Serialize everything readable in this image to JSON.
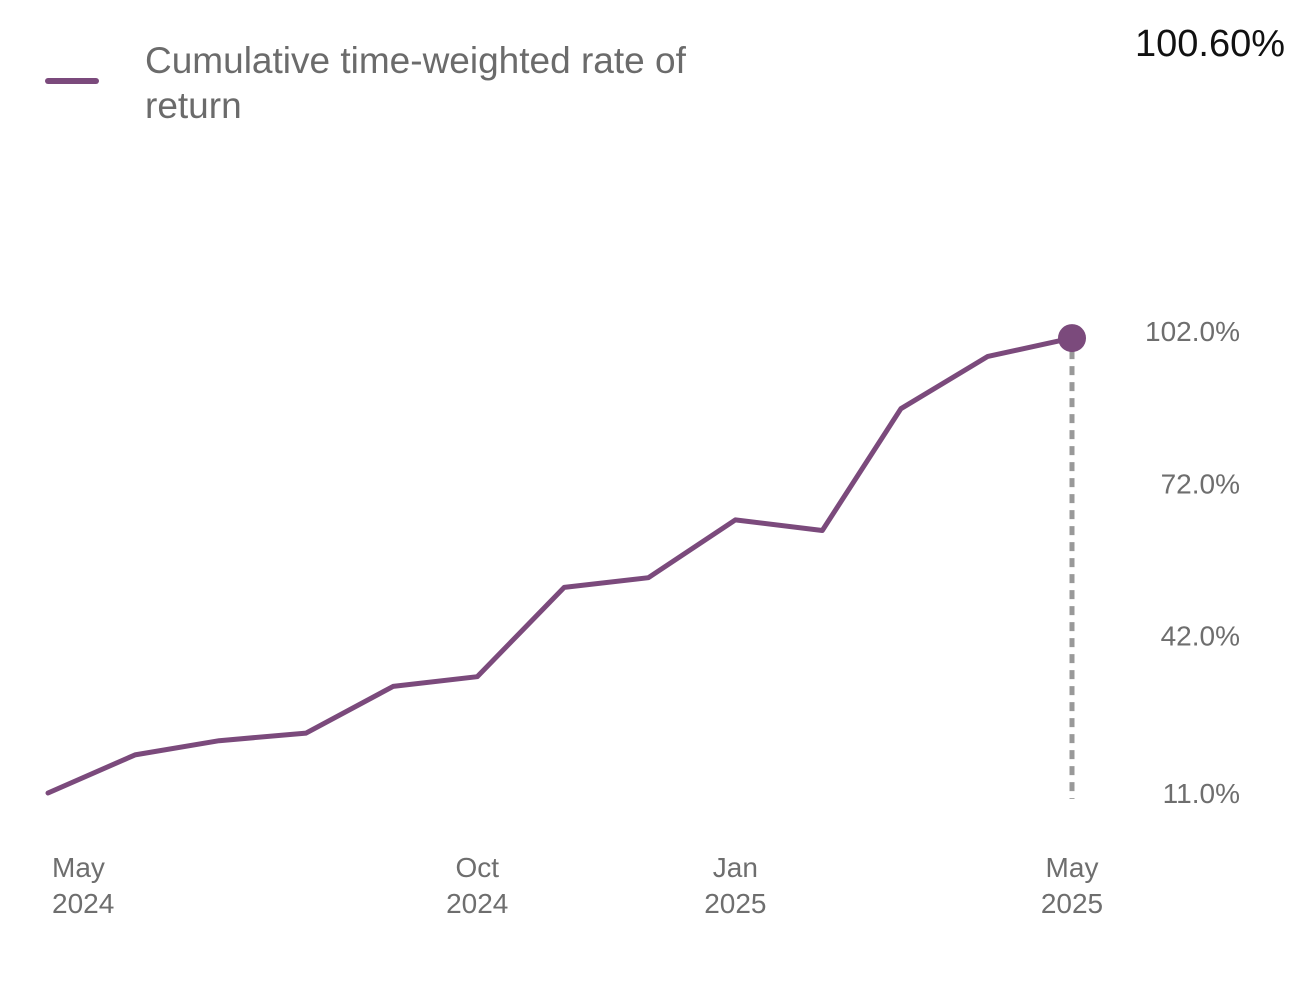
{
  "legend": {
    "label": "Cumulative time-weighted rate of return",
    "current_value": "100.60%"
  },
  "colors": {
    "series": "#7b4a7c",
    "guide": "#999999",
    "axis_text": "#6e6e6e"
  },
  "chart_data": {
    "type": "line",
    "title": "",
    "xlabel": "",
    "ylabel": "",
    "grid": false,
    "legend_position": "top-left",
    "x_ticks": [
      {
        "date": "2024-05-01",
        "line1": "May",
        "line2": "2024"
      },
      {
        "date": "2024-10-01",
        "line1": "Oct",
        "line2": "2024"
      },
      {
        "date": "2025-01-01",
        "line1": "Jan",
        "line2": "2025"
      },
      {
        "date": "2025-05-01",
        "line1": "May",
        "line2": "2025"
      }
    ],
    "y_ticks": [
      {
        "value": 11.0,
        "label": "11.0%"
      },
      {
        "value": 42.0,
        "label": "42.0%"
      },
      {
        "value": 72.0,
        "label": "72.0%"
      },
      {
        "value": 102.0,
        "label": "102.0%"
      }
    ],
    "xlim": [
      "2024-05-01",
      "2025-05-01"
    ],
    "ylim": [
      11.0,
      102.0
    ],
    "series": [
      {
        "name": "Cumulative time-weighted rate of return",
        "points": [
          {
            "x": "2024-05-01",
            "y": 11.0
          },
          {
            "x": "2024-06-01",
            "y": 18.5
          },
          {
            "x": "2024-07-01",
            "y": 21.3
          },
          {
            "x": "2024-08-01",
            "y": 22.8
          },
          {
            "x": "2024-09-01",
            "y": 32.0
          },
          {
            "x": "2024-10-01",
            "y": 33.9
          },
          {
            "x": "2024-11-01",
            "y": 51.5
          },
          {
            "x": "2024-12-01",
            "y": 53.4
          },
          {
            "x": "2025-01-01",
            "y": 64.8
          },
          {
            "x": "2025-02-01",
            "y": 62.7
          },
          {
            "x": "2025-03-01",
            "y": 86.7
          },
          {
            "x": "2025-04-01",
            "y": 97.0
          },
          {
            "x": "2025-05-01",
            "y": 100.6
          }
        ]
      }
    ]
  }
}
